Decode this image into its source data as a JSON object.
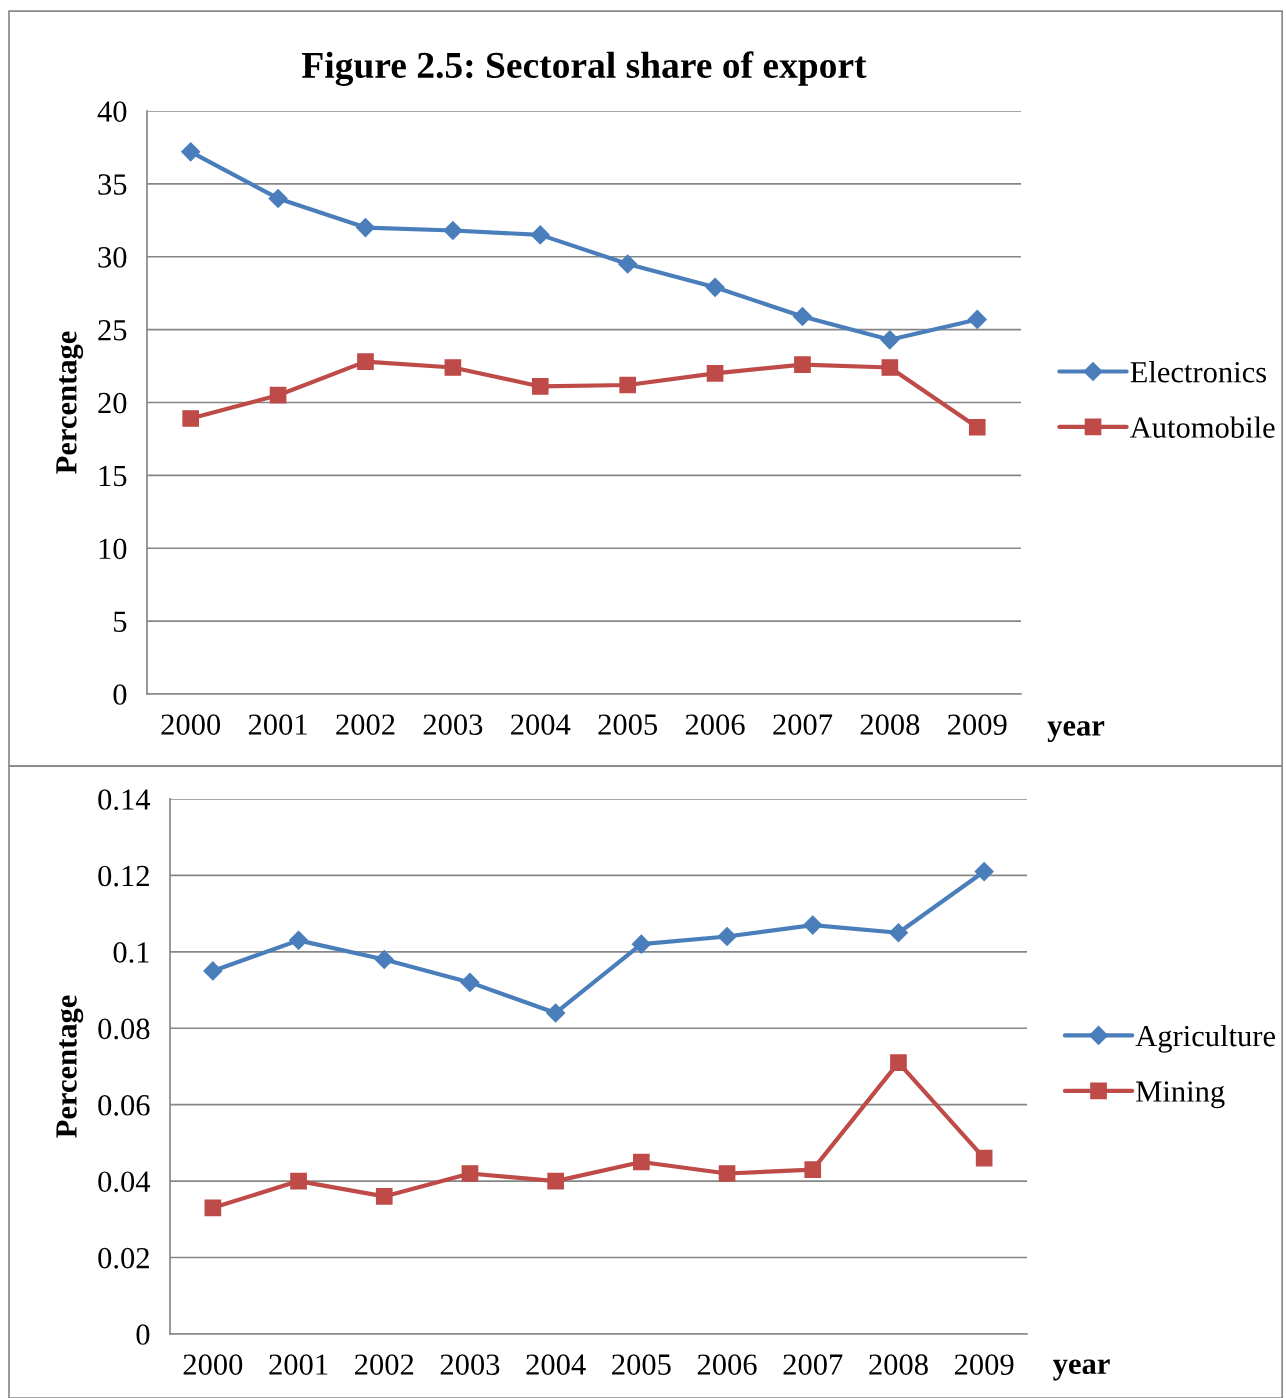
{
  "chart_data": [
    {
      "type": "line",
      "title": "Figure 2.5: Sectoral share of export",
      "xlabel": "year",
      "ylabel": "Percentage",
      "categories": [
        "2000",
        "2001",
        "2002",
        "2003",
        "2004",
        "2005",
        "2006",
        "2007",
        "2008",
        "2009"
      ],
      "series": [
        {
          "name": "Electronics",
          "color": "#4a7ebb",
          "marker": "diamond",
          "values": [
            37.2,
            34.0,
            32.0,
            31.8,
            31.5,
            29.5,
            27.9,
            25.9,
            24.3,
            25.7
          ]
        },
        {
          "name": "Automobile",
          "color": "#be4b48",
          "marker": "square",
          "values": [
            18.9,
            20.5,
            22.8,
            22.4,
            21.1,
            21.2,
            22.0,
            22.6,
            22.4,
            18.3
          ]
        }
      ],
      "ylim": [
        0,
        40
      ],
      "yticks": [
        0,
        5,
        10,
        15,
        20,
        25,
        30,
        35,
        40
      ],
      "grid": "y",
      "legend": "right",
      "line_style": "solid"
    },
    {
      "type": "line",
      "xlabel": "year",
      "ylabel": "Percentage",
      "categories": [
        "2000",
        "2001",
        "2002",
        "2003",
        "2004",
        "2005",
        "2006",
        "2007",
        "2008",
        "2009"
      ],
      "series": [
        {
          "name": "Agriculture",
          "color": "#4a7ebb",
          "marker": "diamond",
          "values": [
            0.095,
            0.103,
            0.098,
            0.092,
            0.084,
            0.102,
            0.104,
            0.107,
            0.105,
            0.121
          ]
        },
        {
          "name": "Mining",
          "color": "#be4b48",
          "marker": "square",
          "values": [
            0.033,
            0.04,
            0.036,
            0.042,
            0.04,
            0.045,
            0.042,
            0.043,
            0.071,
            0.046
          ]
        }
      ],
      "ylim": [
        0,
        0.14
      ],
      "yticks": [
        0,
        0.02,
        0.04,
        0.06,
        0.08,
        0.1,
        0.12,
        0.14
      ],
      "grid": "y",
      "legend": "right",
      "line_style": "solid"
    }
  ]
}
